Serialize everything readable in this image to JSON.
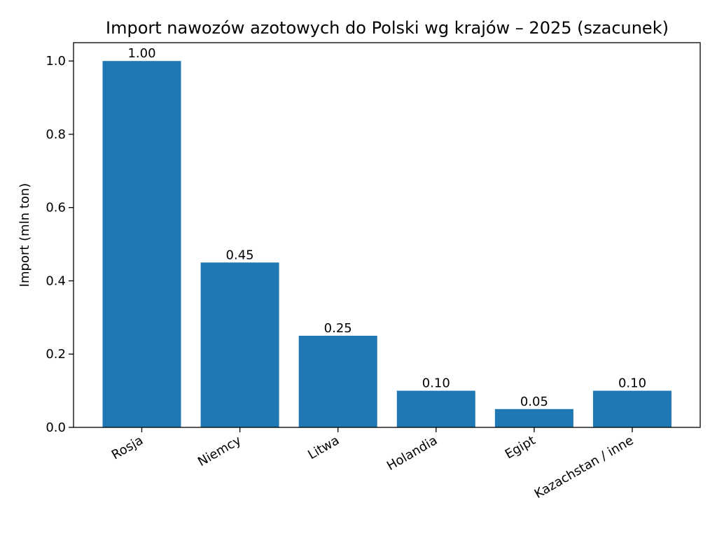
{
  "chart_data": {
    "type": "bar",
    "title": "Import nawozów azotowych do Polski wg krajów – 2025 (szacunek)",
    "xlabel": "",
    "ylabel": "Import (mln ton)",
    "categories": [
      "Rosja",
      "Niemcy",
      "Litwa",
      "Holandia",
      "Egipt",
      "Kazachstan / inne"
    ],
    "values": [
      1.0,
      0.45,
      0.25,
      0.1,
      0.05,
      0.1
    ],
    "data_labels": [
      "1.00",
      "0.45",
      "0.25",
      "0.10",
      "0.05",
      "0.10"
    ],
    "ylim": [
      0,
      1.05
    ],
    "yticks": [
      0.0,
      0.2,
      0.4,
      0.6,
      0.8,
      1.0
    ],
    "ytick_labels": [
      "0.0",
      "0.2",
      "0.4",
      "0.6",
      "0.8",
      "1.0"
    ],
    "grid": false,
    "bar_color": "#1f77b4",
    "xtick_rotation_deg": 30
  }
}
